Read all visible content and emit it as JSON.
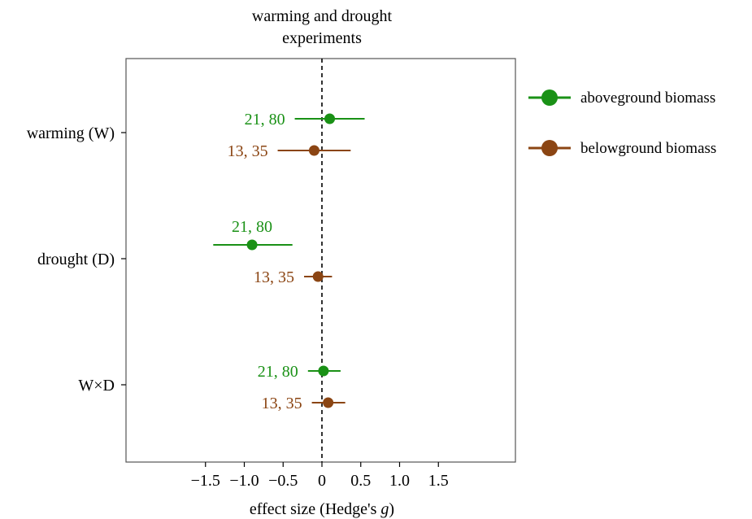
{
  "chart_data": {
    "type": "forest",
    "title": "warming and drought experiments",
    "xlabel_prefix": "effect size (Hedge's ",
    "xlabel_italic": "g",
    "xlabel_suffix": ")",
    "xlim": [
      -1.65,
      1.65
    ],
    "xticks": [
      -1.5,
      -1.0,
      -0.5,
      0,
      0.5,
      1.0,
      1.5
    ],
    "xtick_labels": [
      "−1.5",
      "−1.0",
      "−0.5",
      "0",
      "0.5",
      "1.0",
      "1.5"
    ],
    "reference_line": 0,
    "categories": [
      "warming (W)",
      "drought (D)",
      "W×D"
    ],
    "series": [
      {
        "name": "aboveground biomass",
        "color": "#1a9116",
        "points": [
          {
            "category": "warming (W)",
            "estimate": 0.1,
            "ci_low": -0.35,
            "ci_high": 0.55,
            "label": "21, 80"
          },
          {
            "category": "drought (D)",
            "estimate": -0.9,
            "ci_low": -1.4,
            "ci_high": -0.38,
            "label": "21, 80"
          },
          {
            "category": "W×D",
            "estimate": 0.02,
            "ci_low": -0.18,
            "ci_high": 0.24,
            "label": "21, 80"
          }
        ]
      },
      {
        "name": "belowground biomass",
        "color": "#8b4513",
        "points": [
          {
            "category": "warming (W)",
            "estimate": -0.1,
            "ci_low": -0.57,
            "ci_high": 0.37,
            "label": "13, 35"
          },
          {
            "category": "drought (D)",
            "estimate": -0.05,
            "ci_low": -0.23,
            "ci_high": 0.13,
            "label": "13, 35"
          },
          {
            "category": "W×D",
            "estimate": 0.08,
            "ci_low": -0.13,
            "ci_high": 0.3,
            "label": "13, 35"
          }
        ]
      }
    ],
    "legend_position": "right"
  }
}
